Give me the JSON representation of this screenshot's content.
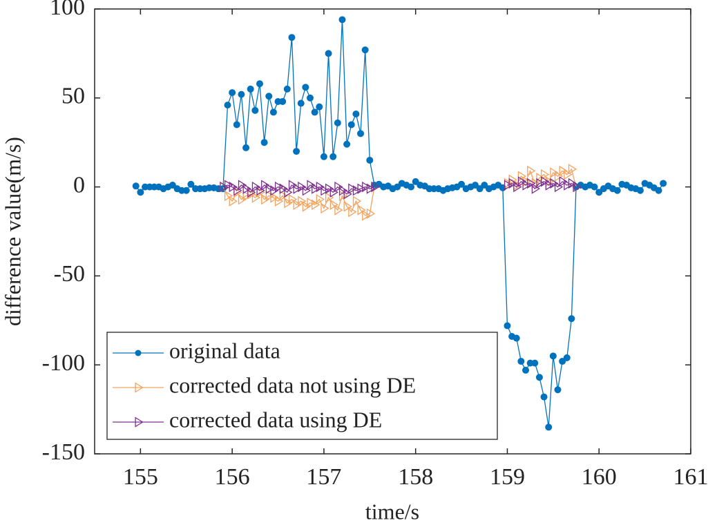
{
  "chart_data": {
    "type": "line",
    "x_label": "time/s",
    "y_label": "difference value(m/s)",
    "xlim": [
      154.5,
      161
    ],
    "xticks": [
      155,
      156,
      157,
      158,
      159,
      160,
      161
    ],
    "ylim": [
      -150,
      100
    ],
    "yticks": [
      100,
      50,
      0,
      -50,
      -100,
      -150
    ],
    "legend": "lower left",
    "grid": false,
    "x": [
      154.95,
      155,
      155.05,
      155.1,
      155.15,
      155.2,
      155.25,
      155.3,
      155.35,
      155.4,
      155.45,
      155.5,
      155.55,
      155.6,
      155.65,
      155.7,
      155.75,
      155.8,
      155.85,
      155.9,
      155.95,
      156,
      156.05,
      156.1,
      156.15,
      156.2,
      156.25,
      156.3,
      156.35,
      156.4,
      156.45,
      156.5,
      156.55,
      156.6,
      156.65,
      156.7,
      156.75,
      156.8,
      156.85,
      156.9,
      156.95,
      157,
      157.05,
      157.1,
      157.15,
      157.2,
      157.25,
      157.3,
      157.35,
      157.4,
      157.45,
      157.5,
      157.55,
      157.6,
      157.65,
      157.7,
      157.75,
      157.8,
      157.85,
      157.9,
      157.95,
      158,
      158.05,
      158.1,
      158.15,
      158.2,
      158.25,
      158.3,
      158.35,
      158.4,
      158.45,
      158.5,
      158.55,
      158.6,
      158.65,
      158.7,
      158.75,
      158.8,
      158.85,
      158.9,
      158.95,
      159,
      159.05,
      159.1,
      159.15,
      159.2,
      159.25,
      159.3,
      159.35,
      159.4,
      159.45,
      159.5,
      159.55,
      159.6,
      159.65,
      159.7,
      159.75,
      159.8,
      159.85,
      159.9,
      159.95,
      160,
      160.05,
      160.1,
      160.15,
      160.2,
      160.25,
      160.3,
      160.35,
      160.4,
      160.45,
      160.5,
      160.55,
      160.6,
      160.65,
      160.7
    ],
    "series": [
      {
        "name": "original data",
        "color": "#0072bd",
        "marker": "dot",
        "values": [
          0.5,
          -3,
          0,
          0,
          0,
          0,
          -1,
          0,
          1,
          -1,
          -2,
          -2,
          1.5,
          -1,
          -1,
          -1,
          -0.5,
          -0.5,
          -1,
          -1,
          46,
          53,
          35,
          52,
          22,
          55,
          43,
          58,
          25,
          51,
          42,
          48,
          48,
          55,
          84,
          20,
          47,
          56,
          50,
          42,
          45,
          17,
          75,
          17,
          36,
          94,
          24,
          35,
          41,
          30,
          77,
          15,
          1,
          1.5,
          0,
          0.5,
          -1,
          0,
          2,
          1,
          0,
          3,
          1,
          0.5,
          -1,
          -1,
          -1,
          -2,
          -1,
          -0.5,
          0,
          1.5,
          -1,
          0,
          1,
          -1,
          1,
          -1,
          0,
          1,
          -0.5,
          -78,
          -84,
          -85,
          -98,
          -103,
          -99,
          -99,
          -107,
          -118,
          -135,
          -95,
          -114,
          -98,
          -96,
          -74,
          0,
          1,
          0,
          1,
          0,
          -3,
          -1,
          0.5,
          -1,
          -2,
          1.5,
          1,
          -0.5,
          -1,
          -2,
          2,
          1,
          -0.5,
          -2,
          2
        ]
      },
      {
        "name": "corrected data not using DE",
        "color": "#f5a25d",
        "marker": "triangle",
        "values": [
          null,
          null,
          null,
          null,
          null,
          null,
          null,
          null,
          null,
          null,
          null,
          null,
          null,
          null,
          null,
          null,
          null,
          null,
          null,
          0,
          -5,
          -8,
          -3,
          -7,
          -5,
          -4,
          -6,
          -3,
          -7,
          -5,
          -6,
          -8,
          -5,
          -9,
          -7,
          -10,
          -8,
          -11,
          -9,
          -10,
          -7,
          -12,
          -6,
          -10,
          -13,
          -5,
          -11,
          -14,
          -8,
          -13,
          -16,
          -15,
          0,
          null,
          null,
          null,
          null,
          null,
          null,
          null,
          null,
          null,
          null,
          null,
          null,
          null,
          null,
          null,
          null,
          null,
          null,
          null,
          null,
          null,
          null,
          null,
          null,
          null,
          null,
          null,
          null,
          2,
          4,
          1,
          6,
          3,
          9,
          2,
          5,
          7,
          3,
          8,
          6,
          9,
          7,
          10,
          0,
          null,
          null,
          null,
          null,
          null,
          null,
          null,
          null,
          null,
          null,
          null,
          null,
          null,
          null,
          null,
          null,
          null,
          null,
          null
        ]
      },
      {
        "name": "corrected data using DE",
        "color": "#7e2f8e",
        "marker": "triangle",
        "values": [
          null,
          null,
          null,
          null,
          null,
          null,
          null,
          null,
          null,
          null,
          null,
          null,
          null,
          null,
          null,
          null,
          null,
          null,
          null,
          0,
          1,
          0,
          -2,
          1,
          -1,
          -3,
          0,
          -2,
          1,
          -1,
          -2,
          0,
          -1,
          -3,
          1,
          -1,
          0,
          -2,
          1,
          -1,
          0,
          -2,
          -1,
          -3,
          0,
          -2,
          -4,
          -1,
          -2,
          -1,
          0,
          -1,
          0,
          null,
          null,
          null,
          null,
          null,
          null,
          null,
          null,
          null,
          null,
          null,
          null,
          null,
          null,
          null,
          null,
          null,
          null,
          null,
          null,
          null,
          null,
          null,
          null,
          null,
          null,
          null,
          null,
          1,
          2,
          0,
          3,
          1,
          2,
          -1,
          2,
          3,
          1,
          2,
          0,
          3,
          1,
          2,
          0,
          null,
          null,
          null,
          null,
          null,
          null,
          null,
          null,
          null,
          null,
          null,
          null,
          null,
          null,
          null,
          null,
          null,
          null,
          null
        ]
      }
    ]
  }
}
